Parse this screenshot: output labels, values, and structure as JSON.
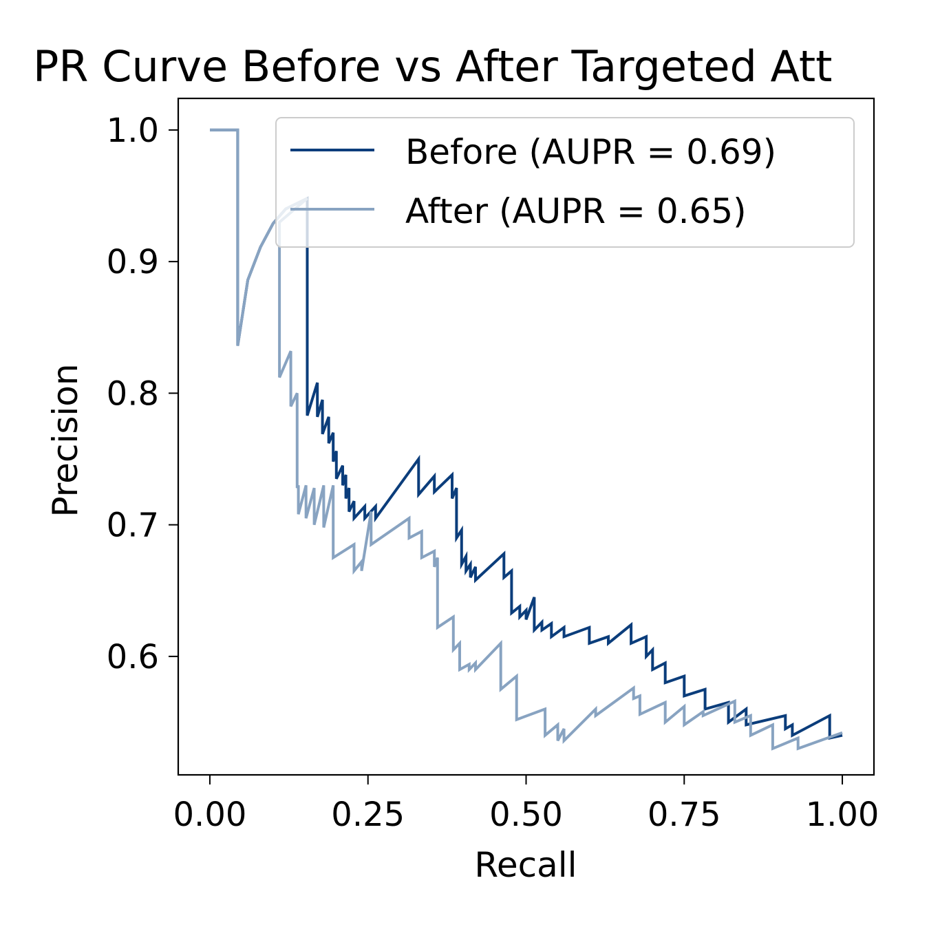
{
  "chart_data": {
    "type": "line",
    "title": "PR Curve Before vs After Targeted Att",
    "xlabel": "Recall",
    "ylabel": "Precision",
    "xlim": [
      -0.05,
      1.05
    ],
    "ylim": [
      0.51,
      1.024
    ],
    "xticks": [
      0.0,
      0.25,
      0.5,
      0.75,
      1.0
    ],
    "xtick_labels": [
      "0.00",
      "0.25",
      "0.50",
      "0.75",
      "1.00"
    ],
    "yticks": [
      0.6,
      0.7,
      0.8,
      0.9,
      1.0
    ],
    "ytick_labels": [
      "0.6",
      "0.7",
      "0.8",
      "0.9",
      "1.0"
    ],
    "grid": false,
    "legend_position": "top-right",
    "series": [
      {
        "name": "Before (AUPR = 0.69)",
        "color": "#0b3d7b",
        "x": [
          0.0,
          0.044,
          0.044,
          0.06,
          0.08,
          0.1,
          0.12,
          0.154,
          0.154,
          0.17,
          0.17,
          0.178,
          0.178,
          0.188,
          0.188,
          0.195,
          0.195,
          0.2,
          0.2,
          0.21,
          0.21,
          0.215,
          0.215,
          0.22,
          0.22,
          0.228,
          0.228,
          0.245,
          0.245,
          0.262,
          0.262,
          0.33,
          0.33,
          0.355,
          0.355,
          0.383,
          0.383,
          0.39,
          0.39,
          0.398,
          0.398,
          0.405,
          0.405,
          0.412,
          0.412,
          0.42,
          0.42,
          0.465,
          0.465,
          0.477,
          0.477,
          0.49,
          0.49,
          0.5,
          0.5,
          0.513,
          0.513,
          0.525,
          0.525,
          0.54,
          0.54,
          0.56,
          0.56,
          0.6,
          0.6,
          0.63,
          0.63,
          0.666,
          0.666,
          0.69,
          0.69,
          0.7,
          0.7,
          0.72,
          0.72,
          0.75,
          0.75,
          0.783,
          0.783,
          0.82,
          0.82,
          0.848,
          0.848,
          0.91,
          0.91,
          0.921,
          0.921,
          0.98,
          0.98,
          1.0
        ],
        "y": [
          1.0,
          1.0,
          0.836,
          0.886,
          0.911,
          0.929,
          0.94,
          0.948,
          0.783,
          0.808,
          0.782,
          0.795,
          0.769,
          0.782,
          0.762,
          0.77,
          0.748,
          0.756,
          0.735,
          0.745,
          0.73,
          0.738,
          0.72,
          0.728,
          0.71,
          0.718,
          0.705,
          0.714,
          0.705,
          0.714,
          0.705,
          0.75,
          0.723,
          0.737,
          0.725,
          0.738,
          0.72,
          0.728,
          0.69,
          0.696,
          0.67,
          0.676,
          0.665,
          0.67,
          0.66,
          0.668,
          0.658,
          0.678,
          0.66,
          0.665,
          0.633,
          0.638,
          0.63,
          0.635,
          0.628,
          0.645,
          0.62,
          0.626,
          0.62,
          0.625,
          0.615,
          0.622,
          0.615,
          0.622,
          0.61,
          0.615,
          0.61,
          0.624,
          0.61,
          0.615,
          0.6,
          0.605,
          0.59,
          0.595,
          0.58,
          0.585,
          0.57,
          0.575,
          0.56,
          0.565,
          0.55,
          0.56,
          0.548,
          0.555,
          0.545,
          0.548,
          0.54,
          0.555,
          0.538,
          0.54
        ]
      },
      {
        "name": "After (AUPR = 0.65)",
        "color": "#88a3c1",
        "x": [
          0.0,
          0.044,
          0.044,
          0.06,
          0.08,
          0.1,
          0.12,
          0.154,
          0.154,
          0.11,
          0.11,
          0.128,
          0.128,
          0.138,
          0.138,
          0.14,
          0.14,
          0.152,
          0.152,
          0.165,
          0.165,
          0.18,
          0.18,
          0.195,
          0.195,
          0.228,
          0.228,
          0.24,
          0.24,
          0.255,
          0.255,
          0.315,
          0.315,
          0.335,
          0.335,
          0.355,
          0.355,
          0.36,
          0.36,
          0.385,
          0.385,
          0.395,
          0.395,
          0.41,
          0.41,
          0.42,
          0.42,
          0.46,
          0.46,
          0.485,
          0.485,
          0.53,
          0.53,
          0.55,
          0.55,
          0.56,
          0.56,
          0.61,
          0.61,
          0.67,
          0.67,
          0.68,
          0.68,
          0.72,
          0.72,
          0.75,
          0.75,
          0.78,
          0.78,
          0.83,
          0.83,
          0.855,
          0.855,
          0.89,
          0.89,
          0.93,
          0.93,
          1.0
        ],
        "y": [
          1.0,
          1.0,
          0.836,
          0.886,
          0.911,
          0.929,
          0.94,
          0.948,
          0.948,
          0.93,
          0.812,
          0.832,
          0.79,
          0.8,
          0.728,
          0.73,
          0.708,
          0.73,
          0.705,
          0.728,
          0.7,
          0.73,
          0.698,
          0.73,
          0.675,
          0.685,
          0.665,
          0.672,
          0.665,
          0.71,
          0.685,
          0.705,
          0.69,
          0.695,
          0.675,
          0.68,
          0.668,
          0.675,
          0.622,
          0.63,
          0.605,
          0.61,
          0.59,
          0.594,
          0.59,
          0.595,
          0.59,
          0.61,
          0.575,
          0.585,
          0.552,
          0.56,
          0.54,
          0.548,
          0.536,
          0.545,
          0.536,
          0.56,
          0.555,
          0.576,
          0.568,
          0.57,
          0.556,
          0.565,
          0.55,
          0.562,
          0.548,
          0.558,
          0.555,
          0.566,
          0.55,
          0.555,
          0.54,
          0.548,
          0.53,
          0.538,
          0.53,
          0.542
        ]
      }
    ]
  }
}
